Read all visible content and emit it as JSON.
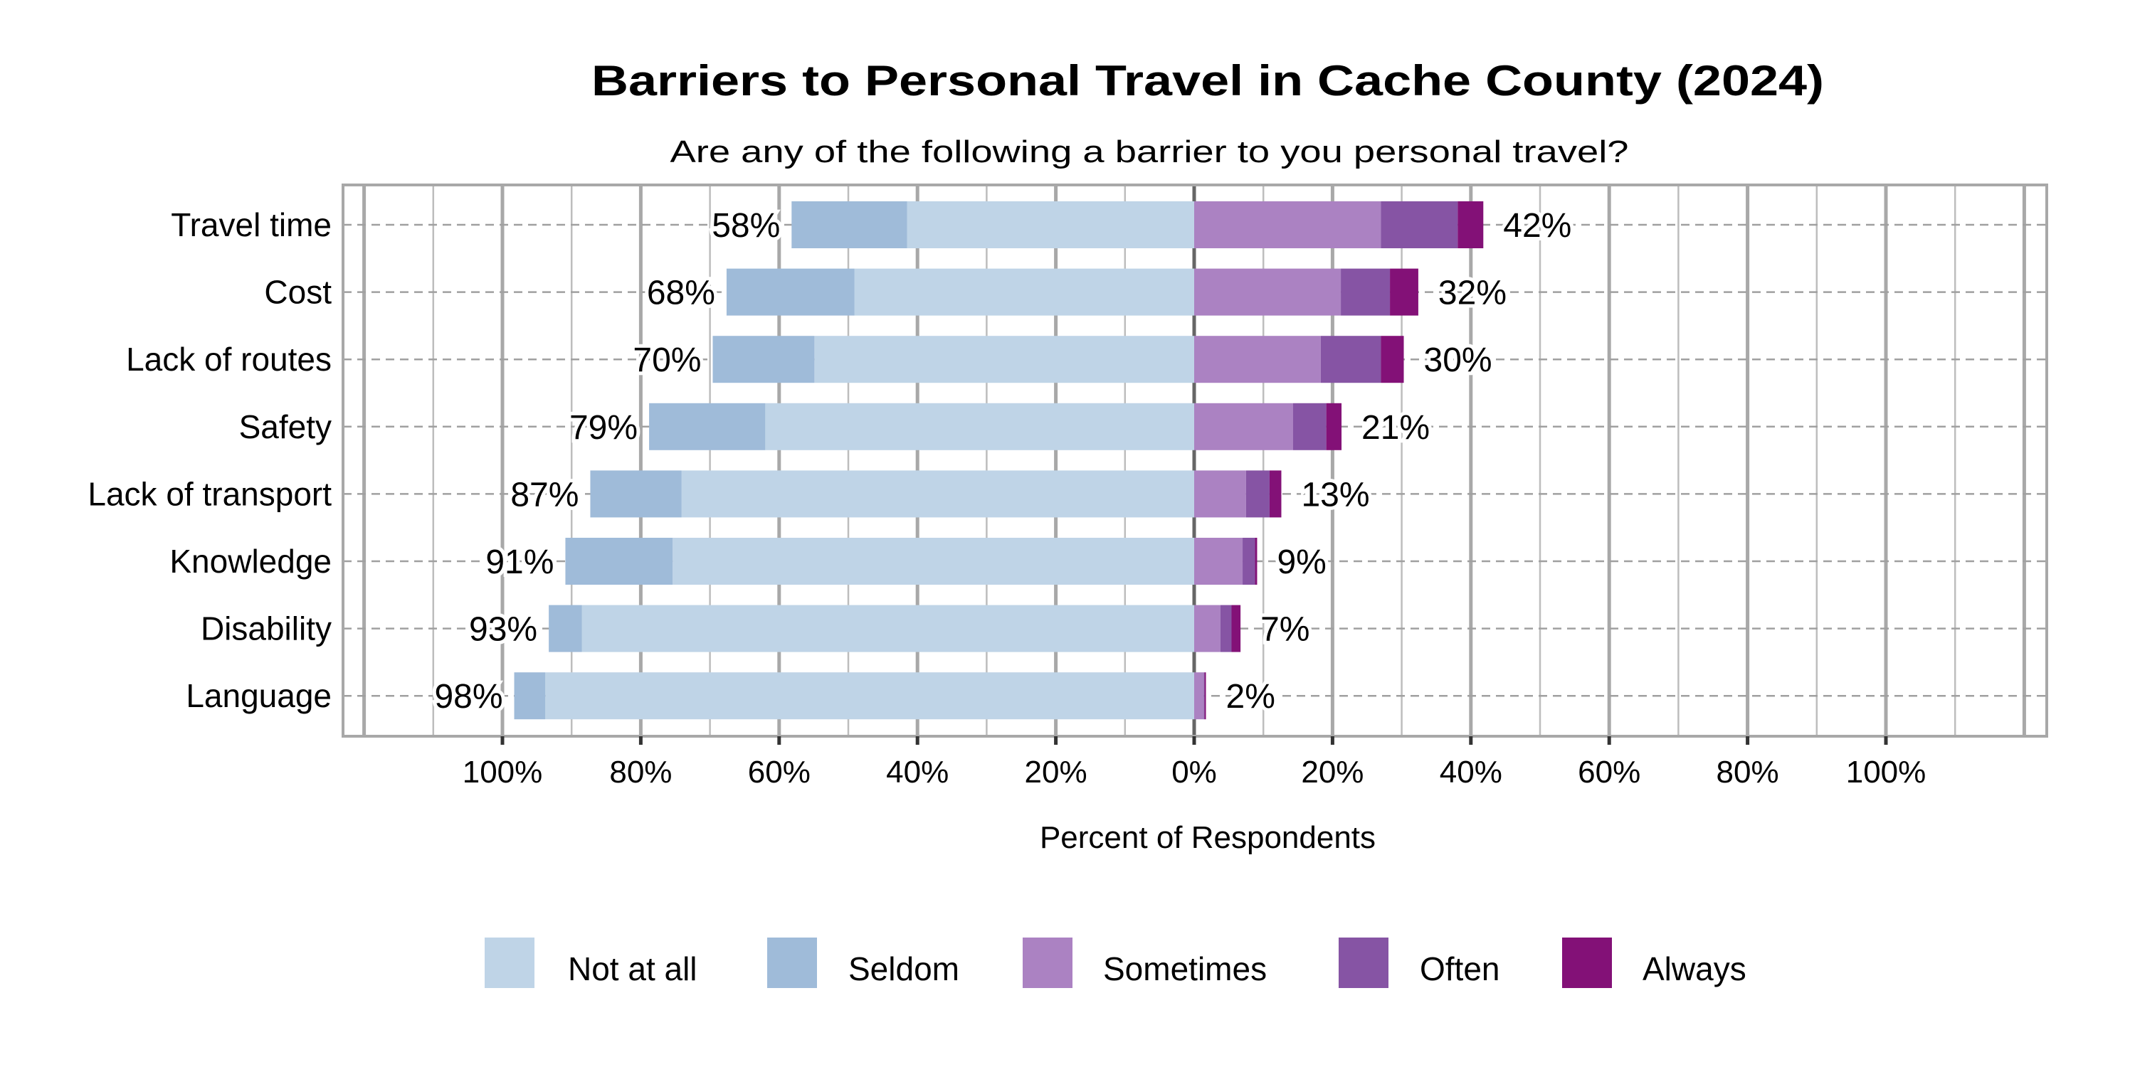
{
  "chart_data": {
    "type": "bar",
    "orientation": "horizontal",
    "stacked": "diverging",
    "title": "Barriers to Personal Travel in Cache County (2024)",
    "subtitle": "Are any of the following a barrier to you personal travel?",
    "xlabel": "Percent of Respondents",
    "ylabel": "",
    "xlim": [
      -123,
      123
    ],
    "xticks": [
      -100,
      -80,
      -60,
      -40,
      -20,
      0,
      20,
      40,
      60,
      80,
      100
    ],
    "xtick_labels": [
      "100%",
      "80%",
      "60%",
      "40%",
      "20%",
      "0%",
      "20%",
      "40%",
      "60%",
      "80%",
      "100%"
    ],
    "grid": true,
    "legend_position": "bottom",
    "categories": [
      "Travel time",
      "Cost",
      "Lack of routes",
      "Safety",
      "Lack of transport",
      "Knowledge",
      "Disability",
      "Language"
    ],
    "series": [
      {
        "name": "Not at all",
        "side": "negative",
        "color": "#BFD4E7",
        "values": [
          41.5,
          49.1,
          54.9,
          62.0,
          74.1,
          75.4,
          88.5,
          93.8
        ]
      },
      {
        "name": "Seldom",
        "side": "negative",
        "color": "#9FBBD9",
        "values": [
          16.7,
          18.5,
          14.7,
          16.8,
          13.2,
          15.5,
          4.8,
          4.5
        ]
      },
      {
        "name": "Sometimes",
        "side": "positive",
        "color": "#AB82C2",
        "values": [
          27.0,
          21.2,
          18.3,
          14.3,
          7.5,
          7.0,
          3.8,
          1.4
        ]
      },
      {
        "name": "Often",
        "side": "positive",
        "color": "#8654A4",
        "values": [
          11.1,
          7.1,
          8.7,
          4.8,
          3.4,
          1.8,
          1.6,
          0.1
        ]
      },
      {
        "name": "Always",
        "side": "positive",
        "color": "#831177",
        "values": [
          3.7,
          4.1,
          3.3,
          2.2,
          1.7,
          0.3,
          1.3,
          0.2
        ]
      }
    ],
    "negative_labels": [
      "58%",
      "68%",
      "70%",
      "79%",
      "87%",
      "91%",
      "93%",
      "98%"
    ],
    "positive_labels": [
      "42%",
      "32%",
      "30%",
      "21%",
      "13%",
      "9%",
      "7%",
      "2%"
    ]
  }
}
